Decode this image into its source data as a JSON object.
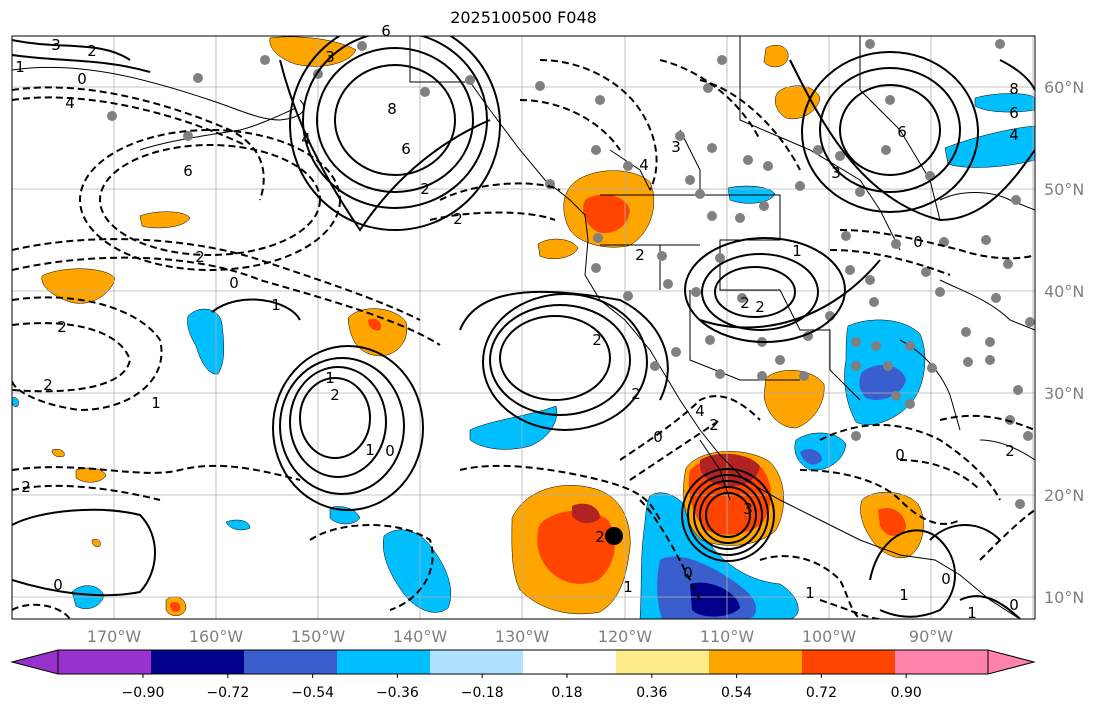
{
  "title": "2025100500 F048",
  "map": {
    "lat_labels": [
      "60°N",
      "50°N",
      "40°N",
      "30°N",
      "20°N",
      "10°N"
    ],
    "lon_labels": [
      "170°W",
      "160°W",
      "150°W",
      "140°W",
      "130°W",
      "120°W",
      "110°W",
      "100°W",
      "90°W"
    ]
  },
  "colorbar": {
    "ticks": [
      "−0.90",
      "−0.72",
      "−0.54",
      "−0.36",
      "−0.18",
      "0.18",
      "0.36",
      "0.54",
      "0.72",
      "0.90"
    ],
    "colors": [
      "#9932cc",
      "#00008b",
      "#3a5fcd",
      "#00bfff",
      "#b0e2ff",
      "#ffffff",
      "#ffec8b",
      "#ffa500",
      "#ff4500",
      "#b22222",
      "#ff82ab"
    ]
  },
  "contour_labels": {
    "solid": [
      "3",
      "8",
      "6",
      "2",
      "2",
      "2",
      "3",
      "6",
      "4",
      "0",
      "1",
      "1",
      "0",
      "2",
      "1",
      "2",
      "3",
      "1",
      "0",
      "0",
      "2",
      "4",
      "1",
      "0",
      "8",
      "6"
    ],
    "dashed": [
      "2",
      "0",
      "4",
      "3",
      "6",
      "2",
      "2",
      "6",
      "2",
      "2",
      "1",
      "2",
      "0",
      "0",
      "1",
      "3",
      "4",
      "4",
      "2",
      "2",
      "1",
      "2",
      "1",
      "2",
      "0",
      "0",
      "1"
    ]
  },
  "colors": {
    "grid": "#b0b0b0",
    "station_dot": "#808080",
    "contour": "#000000"
  }
}
